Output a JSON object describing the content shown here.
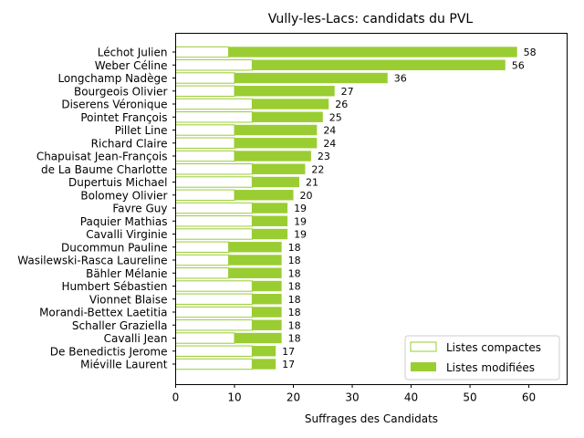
{
  "chart_data": {
    "type": "bar",
    "orientation": "horizontal",
    "stacked": true,
    "title": "Vully-les-Lacs: candidats du PVL",
    "xlabel": "Suffrages des Candidats",
    "ylabel": "",
    "xlim": [
      0,
      66.5
    ],
    "xticks": [
      0,
      10,
      20,
      30,
      40,
      50,
      60
    ],
    "grid": false,
    "legend_position": "lower-right",
    "colors": {
      "modified": "#9acd32",
      "compact_fill": "#ffffff",
      "compact_edge": "#9acd32"
    },
    "legend": [
      {
        "key": "compact",
        "label": "Listes compactes"
      },
      {
        "key": "modified",
        "label": "Listes modifiées"
      }
    ],
    "categories": [
      "Léchot Julien",
      "Weber Céline",
      "Longchamp Nadège",
      "Bourgeois Olivier",
      "Diserens Véronique",
      "Pointet François",
      "Pillet Line",
      "Richard Claire",
      "Chapuisat Jean-François",
      "de La Baume Charlotte",
      "Dupertuis Michael",
      "Bolomey Olivier",
      "Favre Guy",
      "Paquier Mathias",
      "Cavalli Virginie",
      "Ducommun Pauline",
      "Wasilewski-Rasca Laureline",
      "Bähler Mélanie",
      "Humbert Sébastien",
      "Vionnet Blaise",
      "Morandi-Bettex Laetitia",
      "Schaller Graziella",
      "Cavalli Jean",
      "De Benedictis Jerome",
      "Miéville Laurent"
    ],
    "series": [
      {
        "name": "Listes compactes",
        "key": "compact",
        "values": [
          9,
          13,
          10,
          10,
          13,
          13,
          10,
          10,
          10,
          13,
          13,
          10,
          13,
          13,
          13,
          9,
          9,
          9,
          13,
          13,
          13,
          13,
          10,
          13,
          13
        ]
      },
      {
        "name": "Listes modifiées",
        "key": "modified",
        "values": [
          49,
          43,
          26,
          17,
          13,
          12,
          14,
          14,
          13,
          9,
          8,
          10,
          6,
          6,
          6,
          9,
          9,
          9,
          5,
          5,
          5,
          5,
          8,
          4,
          4
        ]
      }
    ],
    "totals": [
      58,
      56,
      36,
      27,
      26,
      25,
      24,
      24,
      23,
      22,
      21,
      20,
      19,
      19,
      19,
      18,
      18,
      18,
      18,
      18,
      18,
      18,
      18,
      17,
      17
    ]
  }
}
